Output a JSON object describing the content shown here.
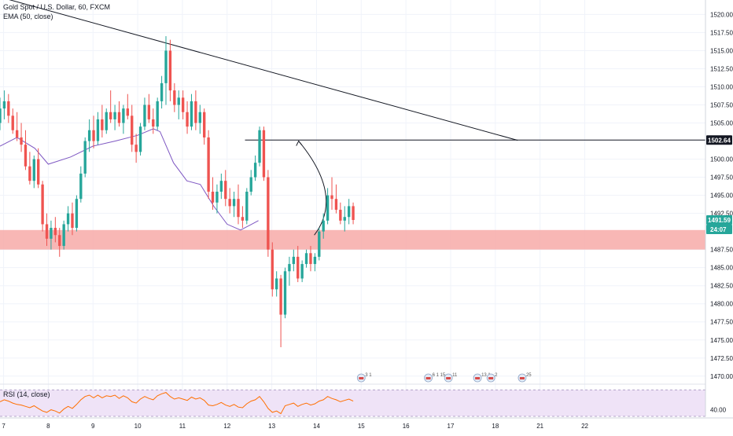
{
  "legend": {
    "symbol": "Gold Spot / U.S. Dollar, 60, FXCM",
    "ema": "EMA (50, close)",
    "rsi": "RSI (14, close)"
  },
  "price_tags": {
    "level": "1502.64",
    "current": "1491.59",
    "countdown": "24:07",
    "partial_axis": "1490.00"
  },
  "colors": {
    "up": "#26a69a",
    "down": "#ef5350",
    "ema": "#7e57c2",
    "rsi": "#ff6f00",
    "zone": "#f7aaa8",
    "rsi_band": "#efe3f7",
    "level_tag": "#131722",
    "current_tag": "#26a69a"
  },
  "events": [
    {
      "icon": "flag-icon",
      "text": "3 1",
      "x_day": 15.0
    },
    {
      "icon": "flag-icon",
      "text": "6 1 15",
      "x_day": 16.5
    },
    {
      "icon": "flag-icon",
      "text": "11",
      "x_day": 16.95
    },
    {
      "icon": "flag-icon",
      "text": "13 1",
      "x_day": 17.6
    },
    {
      "icon": "flag-icon",
      "text": "2",
      "x_day": 17.9
    },
    {
      "icon": "flag-icon",
      "text": "25",
      "x_day": 18.6
    }
  ],
  "chart_data": {
    "type": "candlestick",
    "timeframe": "60",
    "y_axis": {
      "range": [
        1469,
        1522
      ],
      "ticks": [
        1470.0,
        1472.5,
        1475.0,
        1477.5,
        1480.0,
        1482.5,
        1485.0,
        1487.5,
        1492.5,
        1495.0,
        1497.5,
        1500.0,
        1505.0,
        1507.5,
        1510.0,
        1512.5,
        1515.0,
        1517.5,
        1520.0
      ]
    },
    "x_axis": {
      "range": [
        6.92,
        22.7
      ],
      "ticks": [
        "7",
        "8",
        "9",
        "10",
        "11",
        "12",
        "13",
        "14",
        "15",
        "16",
        "17",
        "18",
        "21",
        "22"
      ]
    },
    "trendline": {
      "x": [
        6.92,
        18.5
      ],
      "y": [
        1522.4,
        1502.6
      ]
    },
    "horizontal_level": {
      "x": [
        12.4,
        22.7
      ],
      "y": 1502.64
    },
    "support_zone": [
      1487.5,
      1490.2
    ],
    "projection_arrow": {
      "from": [
        13.95,
        1489.5
      ],
      "to": [
        13.6,
        1502.5
      ]
    },
    "ema": {
      "name": "EMA (50, close)",
      "x": [
        6.92,
        7.3,
        7.7,
        8.0,
        8.5,
        9.0,
        9.5,
        10.0,
        10.35,
        10.5,
        10.8,
        11.1,
        11.4,
        11.7,
        12.0,
        12.3,
        12.55,
        12.7
      ],
      "y": [
        1501.8,
        1503.0,
        1501.5,
        1499.3,
        1500.3,
        1501.8,
        1502.5,
        1503.3,
        1504.2,
        1503.8,
        1499.5,
        1497.0,
        1496.5,
        1493.5,
        1491.0,
        1490.2,
        1491.0,
        1491.5
      ]
    },
    "candles": [
      [
        1505.0,
        1508.5,
        1504.0,
        1507.0
      ],
      [
        1507.0,
        1509.5,
        1505.5,
        1508.0
      ],
      [
        1508.0,
        1509.0,
        1505.0,
        1506.0
      ],
      [
        1506.0,
        1507.0,
        1503.5,
        1504.0
      ],
      [
        1504.0,
        1506.5,
        1502.5,
        1503.0
      ],
      [
        1503.0,
        1505.0,
        1501.0,
        1502.0
      ],
      [
        1502.0,
        1504.0,
        1498.5,
        1499.0
      ],
      [
        1499.0,
        1501.0,
        1496.5,
        1497.0
      ],
      [
        1497.0,
        1500.5,
        1496.0,
        1500.0
      ],
      [
        1500.0,
        1501.5,
        1496.0,
        1496.5
      ],
      [
        1496.5,
        1497.0,
        1490.0,
        1491.0
      ],
      [
        1491.0,
        1492.5,
        1488.0,
        1489.0
      ],
      [
        1489.0,
        1491.5,
        1487.5,
        1490.5
      ],
      [
        1490.5,
        1492.0,
        1488.5,
        1489.5
      ],
      [
        1489.5,
        1490.5,
        1486.5,
        1488.0
      ],
      [
        1488.0,
        1491.5,
        1487.5,
        1491.0
      ],
      [
        1491.0,
        1493.5,
        1490.0,
        1492.5
      ],
      [
        1492.5,
        1494.0,
        1489.5,
        1490.5
      ],
      [
        1490.5,
        1495.0,
        1490.0,
        1494.5
      ],
      [
        1494.5,
        1499.0,
        1494.0,
        1498.0
      ],
      [
        1498.0,
        1503.0,
        1497.5,
        1502.5
      ],
      [
        1502.5,
        1505.5,
        1501.0,
        1504.0
      ],
      [
        1504.0,
        1506.0,
        1501.5,
        1502.5
      ],
      [
        1502.5,
        1506.5,
        1502.0,
        1505.5
      ],
      [
        1505.5,
        1507.5,
        1503.0,
        1504.0
      ],
      [
        1504.0,
        1507.0,
        1503.5,
        1506.5
      ],
      [
        1506.5,
        1509.5,
        1505.0,
        1505.5
      ],
      [
        1505.5,
        1507.5,
        1504.0,
        1506.5
      ],
      [
        1506.5,
        1508.0,
        1504.5,
        1505.0
      ],
      [
        1505.0,
        1507.5,
        1503.5,
        1507.0
      ],
      [
        1507.0,
        1509.0,
        1505.5,
        1506.0
      ],
      [
        1506.0,
        1507.5,
        1501.0,
        1502.0
      ],
      [
        1502.0,
        1503.5,
        1499.5,
        1501.0
      ],
      [
        1501.0,
        1505.0,
        1500.5,
        1504.5
      ],
      [
        1504.5,
        1508.5,
        1504.0,
        1507.5
      ],
      [
        1507.5,
        1509.0,
        1505.0,
        1505.5
      ],
      [
        1505.5,
        1507.0,
        1503.5,
        1504.5
      ],
      [
        1504.5,
        1508.5,
        1504.0,
        1508.0
      ],
      [
        1508.0,
        1511.5,
        1507.0,
        1510.5
      ],
      [
        1510.5,
        1517.0,
        1507.5,
        1515.0
      ],
      [
        1515.0,
        1516.5,
        1508.0,
        1509.5
      ],
      [
        1509.5,
        1510.5,
        1506.5,
        1507.5
      ],
      [
        1507.5,
        1509.5,
        1505.5,
        1508.5
      ],
      [
        1508.5,
        1509.5,
        1505.5,
        1506.5
      ],
      [
        1506.5,
        1508.0,
        1503.5,
        1504.5
      ],
      [
        1504.5,
        1509.0,
        1504.0,
        1508.0
      ],
      [
        1508.0,
        1509.5,
        1504.0,
        1505.0
      ],
      [
        1505.0,
        1507.5,
        1503.5,
        1506.5
      ],
      [
        1506.5,
        1507.0,
        1502.0,
        1503.0
      ],
      [
        1503.0,
        1504.0,
        1494.5,
        1495.5
      ],
      [
        1495.5,
        1497.5,
        1493.0,
        1494.0
      ],
      [
        1494.0,
        1496.5,
        1492.5,
        1495.5
      ],
      [
        1495.5,
        1498.0,
        1494.5,
        1497.0
      ],
      [
        1497.0,
        1498.5,
        1493.5,
        1494.5
      ],
      [
        1494.5,
        1496.0,
        1492.5,
        1493.5
      ],
      [
        1493.5,
        1495.5,
        1492.0,
        1494.5
      ],
      [
        1494.5,
        1496.5,
        1491.0,
        1492.0
      ],
      [
        1492.0,
        1493.5,
        1490.5,
        1491.5
      ],
      [
        1491.5,
        1496.0,
        1491.0,
        1495.5
      ],
      [
        1495.5,
        1498.5,
        1495.0,
        1497.5
      ],
      [
        1497.5,
        1500.5,
        1497.0,
        1499.5
      ],
      [
        1499.5,
        1504.5,
        1499.0,
        1504.0
      ],
      [
        1504.0,
        1504.5,
        1497.0,
        1497.5
      ],
      [
        1497.5,
        1498.5,
        1486.5,
        1487.5
      ],
      [
        1487.5,
        1488.5,
        1481.0,
        1482.0
      ],
      [
        1482.0,
        1484.5,
        1481.0,
        1483.5
      ],
      [
        1483.5,
        1484.0,
        1474.0,
        1478.5
      ],
      [
        1478.5,
        1485.0,
        1478.0,
        1484.5
      ],
      [
        1484.5,
        1486.5,
        1482.5,
        1485.5
      ],
      [
        1485.5,
        1487.5,
        1484.5,
        1486.5
      ],
      [
        1486.5,
        1488.0,
        1483.0,
        1483.5
      ],
      [
        1483.5,
        1486.0,
        1483.0,
        1485.5
      ],
      [
        1485.5,
        1487.5,
        1485.0,
        1487.0
      ],
      [
        1487.0,
        1488.0,
        1484.5,
        1485.5
      ],
      [
        1485.5,
        1487.0,
        1484.5,
        1486.5
      ],
      [
        1486.5,
        1490.5,
        1486.0,
        1490.0
      ],
      [
        1490.0,
        1492.5,
        1489.0,
        1491.5
      ],
      [
        1491.5,
        1496.0,
        1491.0,
        1495.0
      ],
      [
        1495.0,
        1497.5,
        1493.0,
        1494.5
      ],
      [
        1494.5,
        1496.5,
        1492.5,
        1493.0
      ],
      [
        1493.0,
        1494.0,
        1491.0,
        1491.5
      ],
      [
        1491.5,
        1493.5,
        1490.0,
        1492.0
      ],
      [
        1492.0,
        1494.5,
        1491.0,
        1493.5
      ],
      [
        1493.5,
        1494.0,
        1491.0,
        1491.59
      ]
    ],
    "rsi": {
      "name": "RSI (14, close)",
      "range": [
        30,
        75
      ],
      "ticks": [
        40.0
      ],
      "band": [
        30,
        70
      ],
      "values": [
        52,
        55,
        53,
        50,
        48,
        47,
        45,
        43,
        46,
        42,
        38,
        36,
        40,
        38,
        35,
        41,
        45,
        42,
        48,
        55,
        60,
        62,
        58,
        62,
        58,
        61,
        60,
        62,
        57,
        61,
        58,
        52,
        50,
        56,
        60,
        57,
        55,
        61,
        64,
        66,
        60,
        56,
        58,
        56,
        54,
        59,
        56,
        58,
        54,
        47,
        46,
        48,
        51,
        47,
        45,
        48,
        44,
        43,
        49,
        53,
        55,
        60,
        52,
        42,
        36,
        38,
        34,
        46,
        48,
        50,
        45,
        48,
        50,
        47,
        49,
        53,
        55,
        60,
        57,
        55,
        52,
        54,
        56,
        53
      ]
    }
  }
}
